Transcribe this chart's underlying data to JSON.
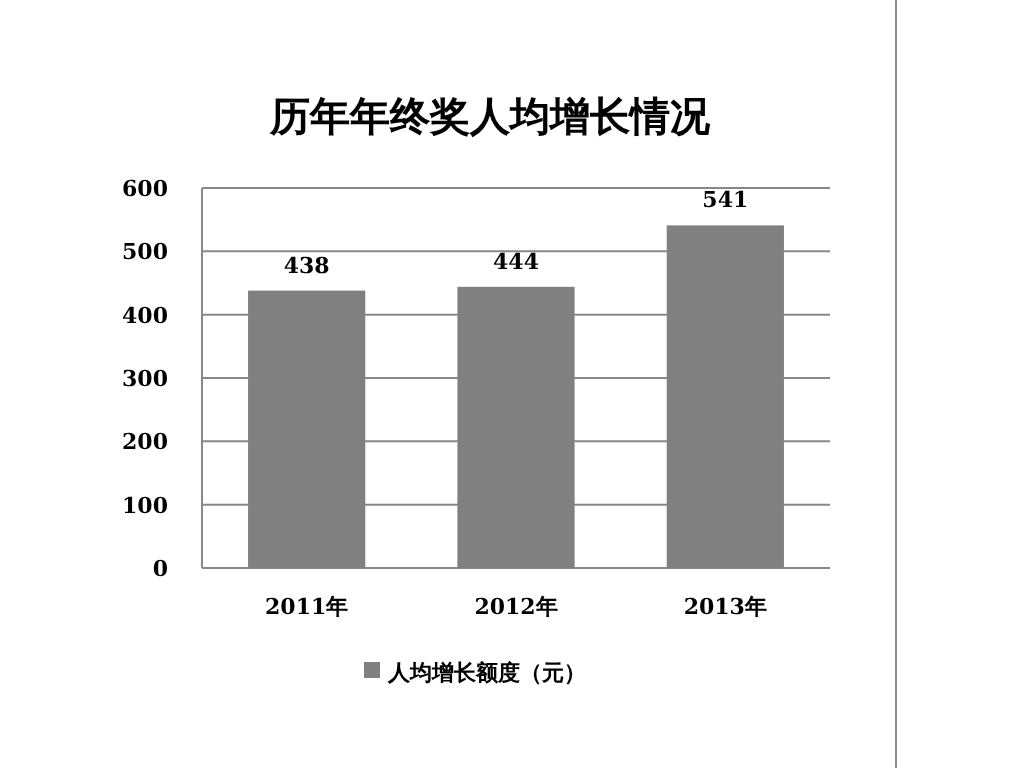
{
  "chart_data": {
    "type": "bar",
    "title": "历年年终奖人均增长情况",
    "categories": [
      "2011年",
      "2012年",
      "2013年"
    ],
    "series": [
      {
        "name": "人均增长额度（元）",
        "color": "#808080",
        "values": [
          438,
          444,
          541
        ]
      }
    ],
    "ylim": [
      0,
      600
    ],
    "yticks": [
      0,
      100,
      200,
      300,
      400,
      500,
      600
    ],
    "grid": "y",
    "legend": "bottom",
    "data_labels": true
  }
}
